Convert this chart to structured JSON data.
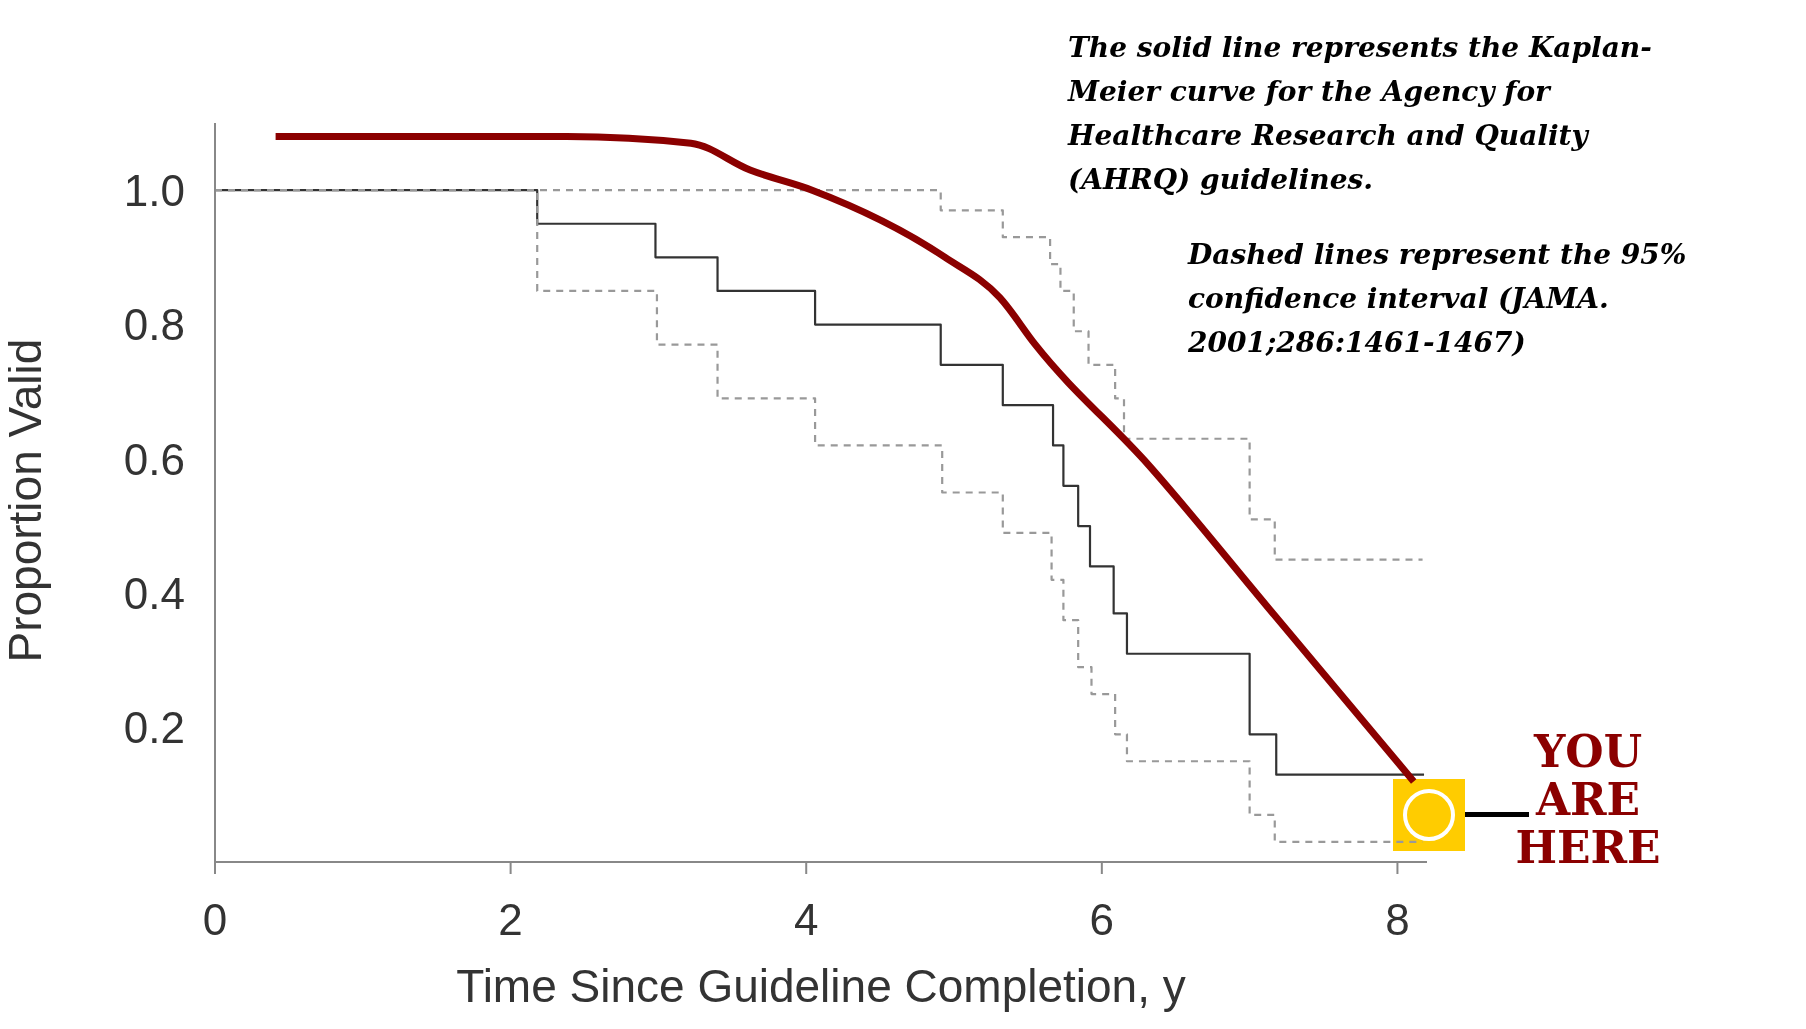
{
  "chart_data": {
    "type": "step",
    "xlabel": "Time Since Guideline Completion, y",
    "ylabel": "Proportion Valid",
    "xlim": [
      0,
      8.2
    ],
    "xticks": [
      0,
      2,
      4,
      6,
      8
    ],
    "ylim": [
      0,
      1.1
    ],
    "yticks": [
      0.2,
      0.4,
      0.6,
      {
        "value": 0.8,
        "label": "0.8"
      },
      {
        "value": 1,
        "label": "1.0"
      }
    ],
    "grid": false,
    "legend": false,
    "marker": "none",
    "series": [
      {
        "color": "#333333",
        "line_style": "solid",
        "x": [
          0,
          2.18,
          2.98,
          3.4,
          4.06,
          4.91,
          5.33,
          5.67,
          5.74,
          5.84,
          5.92,
          6.08,
          6.17,
          7.0,
          7.18,
          8.18
        ],
        "values": [
          1,
          0.95,
          0.9,
          0.85,
          0.8,
          0.74,
          0.68,
          0.62,
          0.56,
          0.5,
          0.44,
          0.37,
          0.31,
          0.19,
          0.13,
          0.13
        ]
      },
      {
        "color": "#999999",
        "line_style": "dashed",
        "x": [
          0,
          4.91,
          5.33,
          5.65,
          5.72,
          5.81,
          5.91,
          6.09,
          6.15,
          7.0,
          7.17,
          8.17
        ],
        "values": [
          1,
          0.97,
          0.93,
          0.89,
          0.85,
          0.79,
          0.74,
          0.69,
          0.63,
          0.51,
          0.45,
          0.45
        ]
      },
      {
        "color": "#999999",
        "line_style": "dashed",
        "x": [
          0,
          2.18,
          2.99,
          3.4,
          4.06,
          4.92,
          5.33,
          5.66,
          5.74,
          5.84,
          5.93,
          6.09,
          6.17,
          7.0,
          7.17,
          8.17
        ],
        "values": [
          1,
          0.85,
          0.77,
          0.69,
          0.62,
          0.55,
          0.49,
          0.42,
          0.36,
          0.29,
          0.25,
          0.19,
          0.15,
          0.07,
          0.03,
          0.03
        ]
      },
      {
        "type": "line",
        "color": "#8b0000",
        "line_style": "solid",
        "x": [
          0.41,
          2.38,
          3.22,
          3.62,
          4.04,
          4.94,
          5.31,
          5.55,
          6.32,
          7.12,
          8.11
        ],
        "values": [
          1.08,
          1.08,
          1.07,
          1.03,
          1.0,
          0.9,
          0.84,
          0.77,
          0.59,
          0.38,
          0.12
        ]
      }
    ],
    "annotations": [
      "The solid line represents the Kaplan-Meier curve for the Agency for Healthcare Research and Quality (AHRQ) guidelines.",
      "Dashed lines represent the 95% confidence interval (JAMA. 2001;286:1461-1467)",
      "YOU ARE HERE"
    ]
  }
}
